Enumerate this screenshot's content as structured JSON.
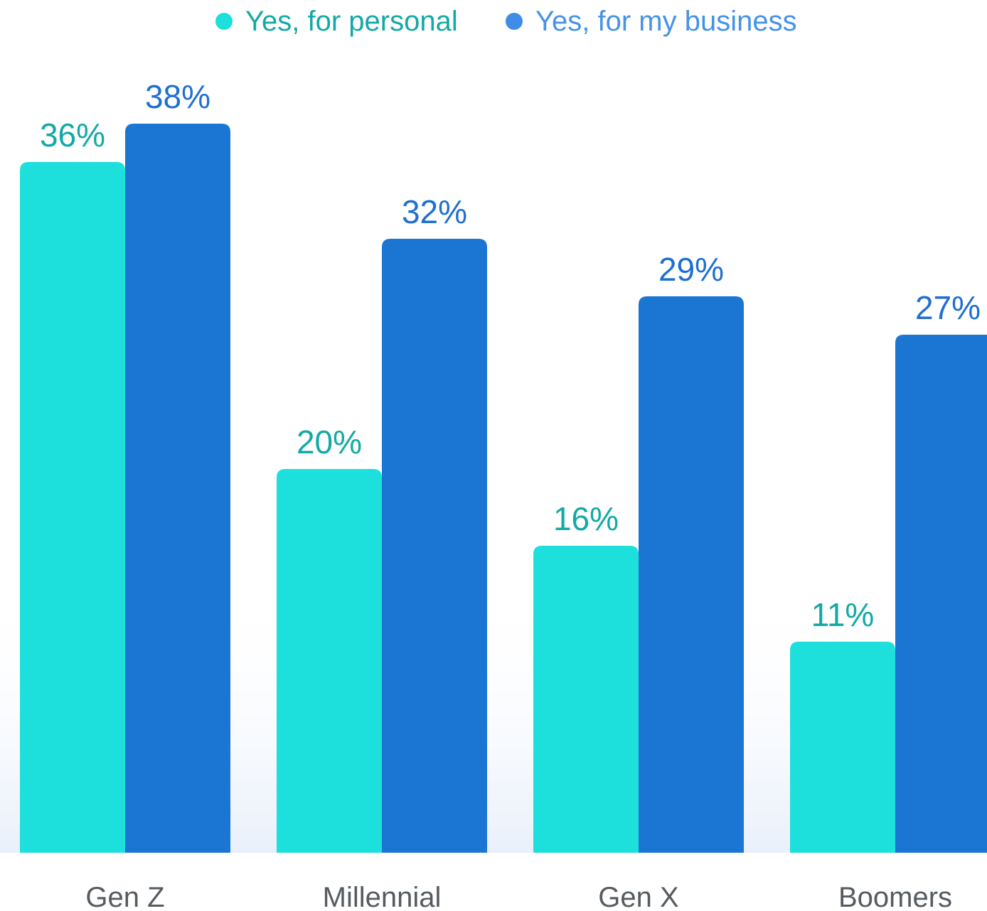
{
  "colors": {
    "personal_bar": "#1ddfdc",
    "business_bar": "#1b75d3",
    "personal_text": "#13a9a6",
    "business_text": "#1f6fd0",
    "business_legend_text": "#4593e6",
    "business_legend_dot": "#3f8de6",
    "category_text": "#555b61"
  },
  "legend": [
    {
      "label": "Yes, for personal",
      "series": "personal"
    },
    {
      "label": "Yes, for my business",
      "series": "business"
    }
  ],
  "chart_data": {
    "type": "bar",
    "title": "",
    "xlabel": "",
    "ylabel": "",
    "categories": [
      "Gen Z",
      "Millennial",
      "Gen X",
      "Boomers"
    ],
    "series": [
      {
        "name": "Yes, for personal",
        "key": "personal",
        "values": [
          36,
          20,
          16,
          11
        ],
        "labels": [
          "36%",
          "20%",
          "16%",
          "11%"
        ]
      },
      {
        "name": "Yes, for my business",
        "key": "business",
        "values": [
          38,
          32,
          29,
          27
        ],
        "labels": [
          "38%",
          "32%",
          "29%",
          "27%"
        ]
      }
    ],
    "ylim": [
      0,
      38
    ],
    "grid": false,
    "legend_position": "top-center"
  }
}
